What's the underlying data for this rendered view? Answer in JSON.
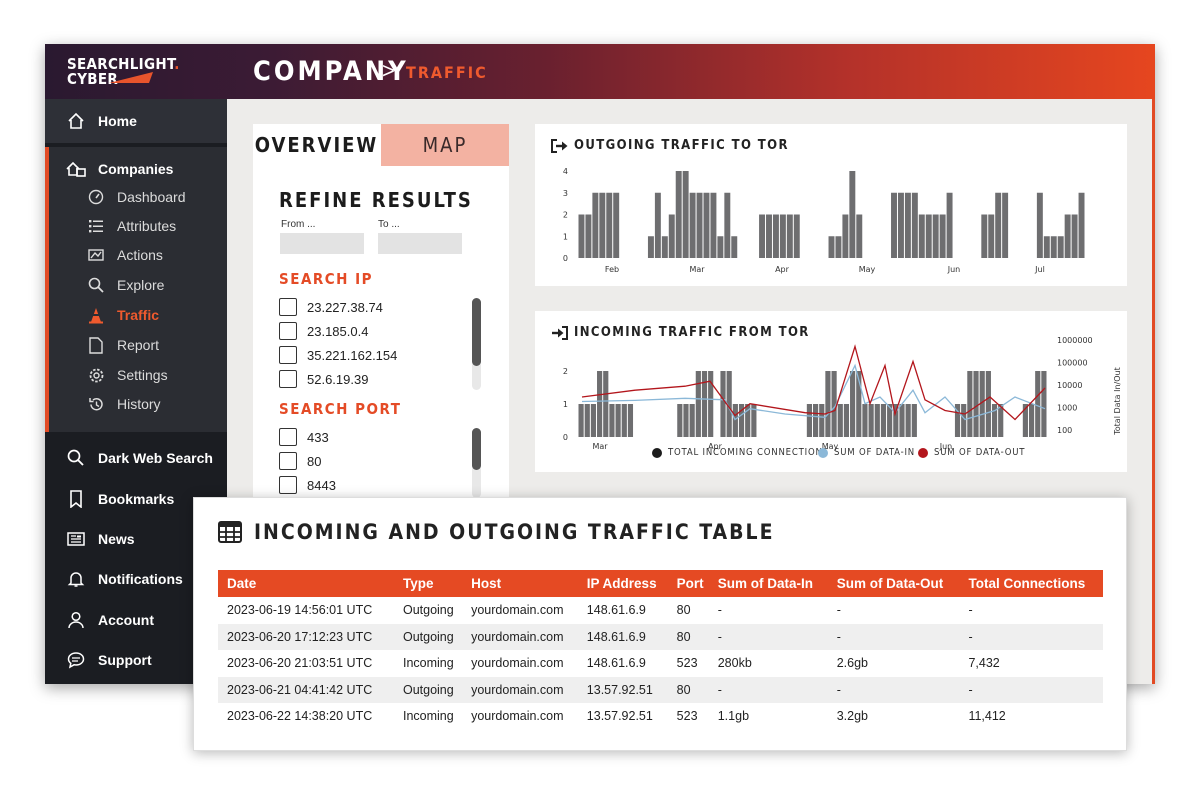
{
  "logo": {
    "line1": "SEARCHLIGHT",
    "dot": ".",
    "line2": "CYBER"
  },
  "breadcrumb": {
    "company": "COMPANY",
    "separator": ">",
    "traffic": "TRAFFIC"
  },
  "sidebar": {
    "home": "Home",
    "companies": "Companies",
    "sub_items": [
      {
        "label": "Dashboard",
        "icon": "gauge-icon"
      },
      {
        "label": "Attributes",
        "icon": "list-icon"
      },
      {
        "label": "Actions",
        "icon": "actions-icon"
      },
      {
        "label": "Explore",
        "icon": "search-icon"
      },
      {
        "label": "Traffic",
        "icon": "traffic-cone-icon",
        "active": true
      },
      {
        "label": "Report",
        "icon": "document-icon"
      },
      {
        "label": "Settings",
        "icon": "gear-icon"
      },
      {
        "label": "History",
        "icon": "history-icon"
      }
    ],
    "bottom_items": [
      {
        "label": "Dark Web Search",
        "icon": "search-icon"
      },
      {
        "label": "Bookmarks",
        "icon": "bookmark-icon"
      },
      {
        "label": "News",
        "icon": "newspaper-icon"
      },
      {
        "label": "Notifications",
        "icon": "bell-icon"
      },
      {
        "label": "Account",
        "icon": "user-icon"
      },
      {
        "label": "Support",
        "icon": "chat-icon"
      }
    ]
  },
  "panel": {
    "tab_overview": "OVERVIEW",
    "tab_map": "MAP",
    "refine_title": "REFINE RESULTS",
    "from_label": "From ...",
    "to_label": "To ...",
    "search_ip_title": "SEARCH IP",
    "ips": [
      "23.227.38.74",
      "23.185.0.4",
      "35.221.162.154",
      "52.6.19.39"
    ],
    "search_port_title": "SEARCH PORT",
    "ports": [
      "433",
      "80",
      "8443"
    ]
  },
  "colors": {
    "accent": "#e54a23",
    "bar": "#6e6e70",
    "data_in": "#8bb8d8",
    "data_out": "#b3161c"
  },
  "chart_data": [
    {
      "type": "bar",
      "title": "OUTGOING TRAFFIC TO TOR",
      "ylim": [
        0,
        4
      ],
      "yticks": [
        "0",
        "1",
        "2",
        "3",
        "4"
      ],
      "xticks": [
        "Feb",
        "Mar",
        "Apr",
        "May",
        "Jun",
        "Jul"
      ],
      "values": [
        2,
        2,
        3,
        3,
        3,
        3,
        0,
        0,
        0,
        0,
        1,
        3,
        1,
        2,
        4,
        4,
        3,
        3,
        3,
        3,
        1,
        3,
        1,
        0,
        0,
        0,
        2,
        2,
        2,
        2,
        2,
        2,
        0,
        0,
        0,
        0,
        1,
        1,
        2,
        4,
        2,
        0,
        0,
        0,
        0,
        3,
        3,
        3,
        3,
        2,
        2,
        2,
        2,
        3,
        0,
        0,
        0,
        0,
        2,
        2,
        3,
        3,
        0,
        0,
        0,
        0,
        3,
        1,
        1,
        1,
        2,
        2,
        3
      ]
    },
    {
      "type": "bar",
      "title": "INCOMING TRAFFIC FROM TOR",
      "ylim": [
        0,
        2
      ],
      "yticks": [
        "0",
        "1",
        "2"
      ],
      "y2ticks": [
        "100",
        "1000",
        "10000",
        "100000",
        "1000000"
      ],
      "y2label": "Total Data In/Out",
      "xticks": [
        "Mar",
        "Apr",
        "May",
        "Jun"
      ],
      "legend": [
        "TOTAL INCOMING CONNECTIONS",
        "SUM OF DATA-IN",
        "SUM OF DATA-OUT"
      ],
      "values": [
        1,
        1,
        1,
        2,
        2,
        1,
        1,
        1,
        1,
        0,
        0,
        0,
        0,
        0,
        0,
        0,
        1,
        1,
        1,
        2,
        2,
        2,
        0,
        2,
        2,
        1,
        1,
        1,
        1,
        0,
        0,
        0,
        0,
        0,
        0,
        0,
        0,
        1,
        1,
        1,
        2,
        2,
        1,
        1,
        2,
        2,
        1,
        1,
        1,
        1,
        1,
        1,
        1,
        1,
        1,
        0,
        0,
        0,
        0,
        0,
        0,
        1,
        1,
        2,
        2,
        2,
        2,
        1,
        1,
        0,
        0,
        0,
        1,
        1,
        2,
        2
      ]
    }
  ],
  "table": {
    "title": "INCOMING AND OUTGOING TRAFFIC TABLE",
    "headers": [
      "Date",
      "Type",
      "Host",
      "IP Address",
      "Port",
      "Sum of Data-In",
      "Sum of Data-Out",
      "Total Connections"
    ],
    "rows": [
      [
        "2023-06-19 14:56:01 UTC",
        "Outgoing",
        "yourdomain.com",
        "148.61.6.9",
        "80",
        "-",
        "-",
        "-"
      ],
      [
        "2023-06-20 17:12:23 UTC",
        "Outgoing",
        "yourdomain.com",
        "148.61.6.9",
        "80",
        "-",
        "-",
        "-"
      ],
      [
        "2023-06-20 21:03:51 UTC",
        "Incoming",
        "yourdomain.com",
        "148.61.6.9",
        "523",
        "280kb",
        "2.6gb",
        "7,432"
      ],
      [
        "2023-06-21 04:41:42 UTC",
        "Outgoing",
        "yourdomain.com",
        "13.57.92.51",
        "80",
        "-",
        "-",
        "-"
      ],
      [
        "2023-06-22 14:38:20 UTC",
        "Incoming",
        "yourdomain.com",
        "13.57.92.51",
        "523",
        "1.1gb",
        "3.2gb",
        "11,412"
      ]
    ]
  }
}
